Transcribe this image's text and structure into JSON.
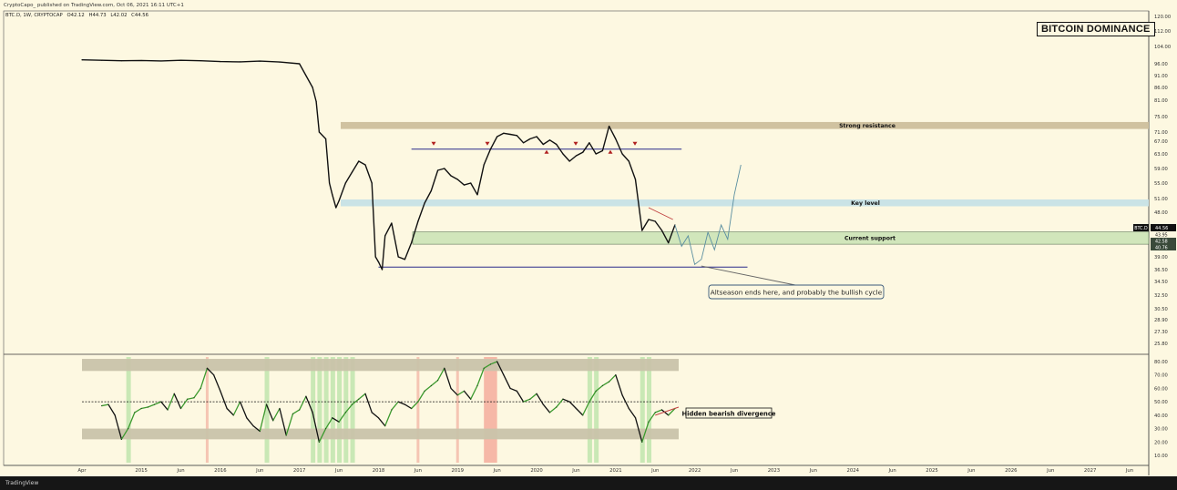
{
  "header": {
    "publisher": "CryptoCapo_ published on TradingView.com, Oct 06, 2021 16:11 UTC+1",
    "symbol": "BTC.D, 1W, CRYPTOCAP",
    "ohlc": [
      "O42.12",
      "H44.73",
      "L42.02",
      "C44.56"
    ]
  },
  "chart_title": "BITCOIN DOMINANCE",
  "footer": {
    "logo": "TradingView"
  },
  "chart_data": [
    {
      "type": "line",
      "title": "BITCOIN DOMINANCE",
      "series_label": "BTC.D",
      "y_ticks": [
        120.0,
        112.0,
        104.0,
        96.0,
        91.0,
        86.0,
        81.0,
        75.0,
        71.0,
        67.0,
        63.0,
        59.0,
        55.0,
        51.0,
        48.0,
        42.5,
        39.0,
        36.5,
        34.5,
        32.5,
        30.5,
        28.9,
        27.3,
        25.8
      ],
      "y_tick_labels": [
        "120.00",
        "112.00",
        "104.00",
        "96.00",
        "91.00",
        "86.00",
        "81.00",
        "75.00",
        "71.00",
        "67.00",
        "63.00",
        "59.00",
        "55.00",
        "51.00",
        "48.00",
        "42.50",
        "39.00",
        "36.50",
        "34.50",
        "32.50",
        "30.50",
        "28.90",
        "27.30",
        "25.80"
      ],
      "price_labels": [
        {
          "text": "BTC.D",
          "value": 44.56,
          "color": "#111111"
        },
        {
          "text": "44.56",
          "value": 44.56,
          "color": "#111111"
        },
        {
          "text": "43.95",
          "value": 43.95,
          "color": "#2a2a2a"
        },
        {
          "text": "42.58",
          "value": 42.58,
          "color": "#3a4a3a"
        },
        {
          "text": "40.76",
          "value": 40.76,
          "color": "#3a4a3a"
        }
      ],
      "zones": [
        {
          "label": "Strong resistance",
          "from": 71.8,
          "to": 73.6,
          "color": "#cdbf9c"
        },
        {
          "label": "Key level",
          "from": 49.3,
          "to": 50.8,
          "color": "#c7e1e6"
        },
        {
          "label": "Current support",
          "from": 40.8,
          "to": 42.6,
          "color": "#cfe6b9"
        }
      ],
      "hlines": [
        {
          "value": 64.5,
          "from": "2018-06",
          "to": "2021-11",
          "color": "#2a2a8a"
        },
        {
          "value": 37.0,
          "from": "2018-01",
          "to": "2022-09",
          "color": "#2a2a8a"
        }
      ],
      "annotation": "Altseason ends here, and probably the bullish cycle",
      "x_labels": [
        "Apr",
        "2015",
        "Jun",
        "2016",
        "Jun",
        "2017",
        "Jun",
        "2018",
        "Jun",
        "2019",
        "Jun",
        "2020",
        "Jun",
        "2021",
        "Jun",
        "2022",
        "Jun",
        "2023",
        "Jun",
        "2024",
        "Jun",
        "2025",
        "Jun",
        "2026",
        "Jun",
        "2027",
        "Jun"
      ],
      "x_dates": [
        "2014-04",
        "2015-01",
        "2015-07",
        "2016-01",
        "2016-07",
        "2017-01",
        "2017-07",
        "2018-01",
        "2018-07",
        "2019-01",
        "2019-07",
        "2020-01",
        "2020-07",
        "2021-01",
        "2021-07",
        "2022-01",
        "2022-07",
        "2023-01",
        "2023-07",
        "2024-01",
        "2024-07",
        "2025-01",
        "2025-07",
        "2026-01",
        "2026-07",
        "2027-01",
        "2027-07"
      ],
      "series": [
        {
          "x": [
            "2014-04",
            "2014-07",
            "2014-10",
            "2015-01",
            "2015-04",
            "2015-07",
            "2015-10",
            "2016-01",
            "2016-04",
            "2016-07",
            "2016-10",
            "2017-01",
            "2017-02",
            "2017-03",
            "2017-03",
            "2017-04",
            "2017-05",
            "2017-05",
            "2017-06",
            "2017-06",
            "2017-07",
            "2017-08",
            "2017-09",
            "2017-10",
            "2017-11",
            "2017-12",
            "2017-12",
            "2018-01",
            "2018-01",
            "2018-02",
            "2018-03",
            "2018-04",
            "2018-05",
            "2018-06",
            "2018-07",
            "2018-08",
            "2018-09",
            "2018-10",
            "2018-11",
            "2018-12",
            "2019-01",
            "2019-02",
            "2019-03",
            "2019-04",
            "2019-05",
            "2019-06",
            "2019-07",
            "2019-08",
            "2019-09",
            "2019-10",
            "2019-11",
            "2019-12",
            "2020-01",
            "2020-02",
            "2020-03",
            "2020-04",
            "2020-05",
            "2020-06",
            "2020-07",
            "2020-08",
            "2020-09",
            "2020-10",
            "2020-11",
            "2020-12",
            "2021-01",
            "2021-02",
            "2021-03",
            "2021-04",
            "2021-05",
            "2021-06",
            "2021-07",
            "2021-08",
            "2021-09",
            "2021-10"
          ],
          "values": [
            97.8,
            97.6,
            97.4,
            97.5,
            97.3,
            97.6,
            97.4,
            97.0,
            96.9,
            97.2,
            96.8,
            96.0,
            91.0,
            86.0,
            80.5,
            71.0,
            68.0,
            55.0,
            52.0,
            49.0,
            50.5,
            55.0,
            58.0,
            61.0,
            60.0,
            55.0,
            39.0,
            38.0,
            36.5,
            42.0,
            45.0,
            39.0,
            38.5,
            41.0,
            45.5,
            50.0,
            53.0,
            58.5,
            59.0,
            57.0,
            56.0,
            54.5,
            55.0,
            52.0,
            60.0,
            64.5,
            69.0,
            70.5,
            70.0,
            69.5,
            66.5,
            68.0,
            69.0,
            66.0,
            67.5,
            66.0,
            63.0,
            61.0,
            62.5,
            63.5,
            66.5,
            63.0,
            64.0,
            72.5,
            68.0,
            63.0,
            61.0,
            56.0,
            43.0,
            46.0,
            45.5,
            43.0,
            41.0,
            44.5
          ]
        }
      ],
      "projection": {
        "x": [
          "2021-10",
          "2021-11",
          "2021-12",
          "2022-01",
          "2022-02",
          "2022-03",
          "2022-04",
          "2022-05",
          "2022-06",
          "2022-07",
          "2022-08"
        ],
        "values": [
          44.5,
          40.5,
          42.0,
          37.5,
          38.5,
          42.5,
          40.0,
          44.5,
          41.5,
          52.0,
          60.0
        ]
      }
    },
    {
      "type": "line",
      "y_ticks": [
        80.0,
        70.0,
        60.0,
        50.0,
        40.0,
        30.0,
        20.0,
        10.0
      ],
      "y_tick_labels": [
        "80.00",
        "70.00",
        "60.00",
        "50.00",
        "40.00",
        "30.00",
        "20.00",
        "10.00"
      ],
      "bands": [
        {
          "from": 73.0,
          "to": 82.0,
          "color": "#c9c3aa"
        },
        {
          "from": 22.0,
          "to": 30.0,
          "color": "#c9c3aa"
        }
      ],
      "midline": 50.0,
      "annotation": "Hidden bearish divergence",
      "series": [
        {
          "x": [
            "2014-07",
            "2014-08",
            "2014-09",
            "2014-10",
            "2014-11",
            "2014-12",
            "2015-01",
            "2015-02",
            "2015-03",
            "2015-04",
            "2015-05",
            "2015-06",
            "2015-07",
            "2015-08",
            "2015-09",
            "2015-10",
            "2015-11",
            "2015-12",
            "2016-01",
            "2016-02",
            "2016-03",
            "2016-04",
            "2016-05",
            "2016-06",
            "2016-07",
            "2016-08",
            "2016-09",
            "2016-10",
            "2016-11",
            "2016-12",
            "2017-01",
            "2017-02",
            "2017-03",
            "2017-04",
            "2017-05",
            "2017-06",
            "2017-07",
            "2017-08",
            "2017-09",
            "2017-10",
            "2017-11",
            "2017-12",
            "2018-01",
            "2018-02",
            "2018-03",
            "2018-04",
            "2018-05",
            "2018-06",
            "2018-07",
            "2018-08",
            "2018-09",
            "2018-10",
            "2018-11",
            "2018-12",
            "2019-01",
            "2019-02",
            "2019-03",
            "2019-04",
            "2019-05",
            "2019-06",
            "2019-07",
            "2019-08",
            "2019-09",
            "2019-10",
            "2019-11",
            "2019-12",
            "2020-01",
            "2020-02",
            "2020-03",
            "2020-04",
            "2020-05",
            "2020-06",
            "2020-07",
            "2020-08",
            "2020-09",
            "2020-10",
            "2020-11",
            "2020-12",
            "2021-01",
            "2021-02",
            "2021-03",
            "2021-04",
            "2021-05",
            "2021-06",
            "2021-07",
            "2021-08",
            "2021-09",
            "2021-10"
          ],
          "values": [
            47,
            48,
            40,
            22,
            30,
            42,
            45,
            46,
            48,
            50,
            44,
            56,
            45,
            52,
            53,
            60,
            75,
            70,
            58,
            45,
            40,
            50,
            38,
            32,
            28,
            48,
            36,
            45,
            25,
            41,
            44,
            54,
            42,
            20,
            30,
            38,
            35,
            42,
            48,
            52,
            56,
            42,
            38,
            32,
            44,
            50,
            48,
            45,
            50,
            58,
            62,
            66,
            75,
            60,
            55,
            58,
            52,
            62,
            75,
            78,
            80,
            70,
            60,
            58,
            50,
            52,
            56,
            48,
            42,
            46,
            52,
            50,
            45,
            40,
            50,
            58,
            62,
            65,
            70,
            55,
            45,
            38,
            20,
            35,
            42,
            44,
            40,
            45
          ]
        }
      ]
    }
  ]
}
